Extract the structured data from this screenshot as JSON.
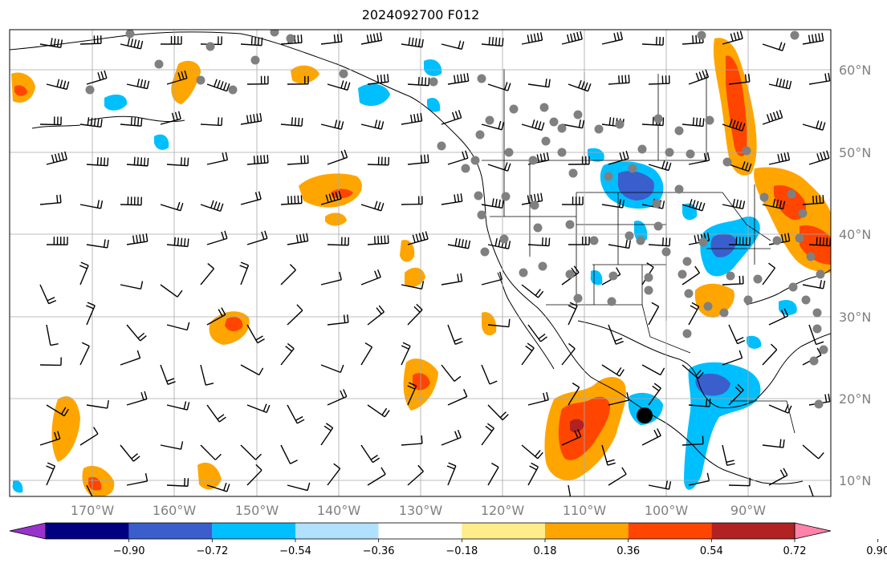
{
  "title": "2024092700 F012",
  "lat_labels": [
    "60°N",
    "50°N",
    "40°N",
    "30°N",
    "20°N",
    "10°N"
  ],
  "lon_labels": [
    "170°W",
    "160°W",
    "150°W",
    "140°W",
    "130°W",
    "120°W",
    "110°W",
    "100°W",
    "90°W"
  ],
  "colorbar": {
    "tick_labels": [
      "−0.90",
      "−0.72",
      "−0.54",
      "−0.36",
      "−0.18",
      "0.18",
      "0.36",
      "0.54",
      "0.72",
      "0.90"
    ],
    "colors": [
      "#9932cc",
      "#000080",
      "#3a5fcd",
      "#00bfff",
      "#b0e2ff",
      "#ffffff",
      "#ffec8b",
      "#ffa500",
      "#ff4500",
      "#b22222",
      "#ff82ab"
    ]
  },
  "shade_colors": {
    "orange": "#ffa500",
    "red_orange": "#ff4500",
    "light_blue": "#b0e2ff",
    "sky_blue": "#00bfff",
    "blue": "#3a5fcd",
    "dark_blue": "#000080"
  },
  "station_marker_color": "#808080",
  "highlight_marker_color": "#000000"
}
